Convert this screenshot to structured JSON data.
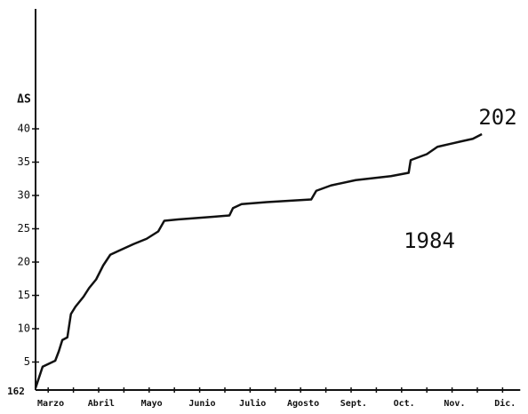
{
  "chart_data": {
    "type": "line",
    "y_label": "ΔS",
    "origin_label": "162",
    "annotations": [
      "202",
      "1984"
    ],
    "categories": [
      "Marzo",
      "Abril",
      "Mayo",
      "Junio",
      "Julio",
      "Agosto",
      "Sept.",
      "Oct.",
      "Nov.",
      "Dic."
    ],
    "x": [
      0,
      0.07,
      0.14,
      0.39,
      0.46,
      0.53,
      0.63,
      0.7,
      0.79,
      0.95,
      1.06,
      1.2,
      1.34,
      1.48,
      1.65,
      1.94,
      2.2,
      2.43,
      2.55,
      2.82,
      3.52,
      3.84,
      3.91,
      4.08,
      4.58,
      5.46,
      5.56,
      5.85,
      6.34,
      7.04,
      7.39,
      7.43,
      7.75,
      7.96,
      8.42,
      8.66,
      8.84
    ],
    "series": [
      {
        "name": "1984",
        "color": "#111111",
        "values": [
          1.1,
          2.7,
          4.3,
          5.2,
          6.6,
          8.3,
          8.7,
          12.2,
          13.3,
          14.8,
          16.1,
          17.4,
          19.5,
          21.1,
          21.7,
          22.7,
          23.5,
          24.6,
          26.2,
          26.4,
          26.8,
          27.0,
          28.1,
          28.7,
          29.0,
          29.4,
          30.7,
          31.5,
          32.3,
          32.9,
          33.4,
          35.3,
          36.2,
          37.3,
          38.1,
          38.5,
          39.2
        ]
      }
    ],
    "xlim": [
      0,
      9.6
    ],
    "ylim": [
      0,
      58
    ],
    "yticks": [
      5,
      10,
      15,
      20,
      25,
      30,
      35,
      40
    ]
  }
}
